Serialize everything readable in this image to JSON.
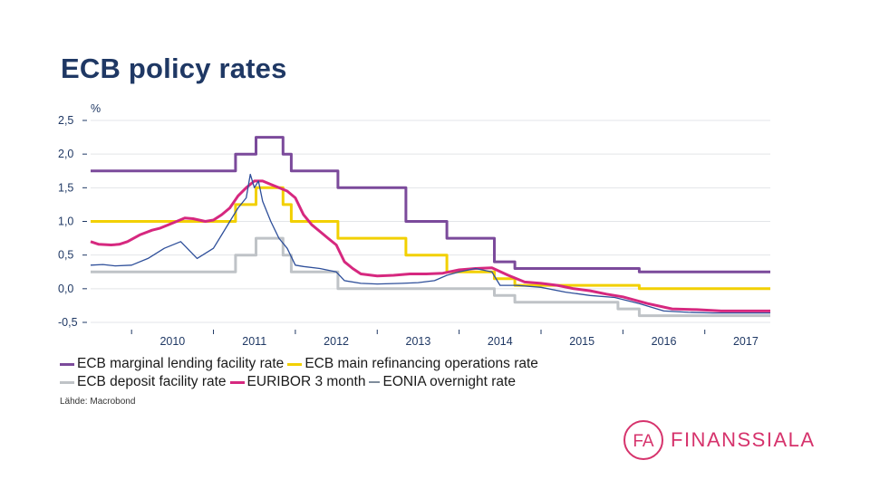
{
  "page": {
    "title": "ECB policy rates"
  },
  "source": "Lähde: Macrobond",
  "logo": {
    "monogram": "FA",
    "text": "FINANSSIALA",
    "color": "#d6336c"
  },
  "chart_data": {
    "type": "line",
    "title": "",
    "ylabel": "%",
    "xlabel": "",
    "y_ticks": [
      "2,5",
      "2,0",
      "1,5",
      "1,0",
      "0,5",
      "0,0",
      "-0,5"
    ],
    "y_tick_values": [
      2.5,
      2.0,
      1.5,
      1.0,
      0.5,
      0.0,
      -0.5
    ],
    "x_ticks": [
      "2010",
      "2011",
      "2012",
      "2013",
      "2014",
      "2015",
      "2016",
      "2017"
    ],
    "ylim": [
      -0.5,
      2.5
    ],
    "xlim": [
      2009.5,
      2017.8
    ],
    "grid": true,
    "legend_position": "bottom",
    "series": [
      {
        "name": "ECB marginal lending facility rate",
        "color": "#7b4a9b",
        "step": true,
        "x": [
          2009.5,
          2011.27,
          2011.52,
          2011.85,
          2011.95,
          2012.52,
          2013.35,
          2013.85,
          2014.43,
          2014.68,
          2015.94,
          2016.2,
          2017.8
        ],
        "y": [
          1.75,
          2.0,
          2.25,
          2.0,
          1.75,
          1.5,
          1.0,
          0.75,
          0.4,
          0.3,
          0.3,
          0.25,
          0.25
        ]
      },
      {
        "name": "ECB main refinancing operations rate",
        "color": "#f2d000",
        "step": true,
        "x": [
          2009.5,
          2011.27,
          2011.52,
          2011.85,
          2011.95,
          2012.52,
          2013.35,
          2013.85,
          2014.43,
          2014.68,
          2016.2,
          2017.8
        ],
        "y": [
          1.0,
          1.25,
          1.5,
          1.25,
          1.0,
          0.75,
          0.5,
          0.25,
          0.15,
          0.05,
          0.0,
          0.0
        ]
      },
      {
        "name": "ECB deposit facility rate",
        "color": "#bfc3c7",
        "step": true,
        "x": [
          2009.5,
          2011.27,
          2011.52,
          2011.85,
          2011.95,
          2012.52,
          2014.43,
          2014.68,
          2015.94,
          2016.2,
          2017.8
        ],
        "y": [
          0.25,
          0.5,
          0.75,
          0.5,
          0.25,
          0.0,
          -0.1,
          -0.2,
          -0.3,
          -0.4,
          -0.4
        ]
      },
      {
        "name": "EURIBOR 3 month",
        "color": "#d6287f",
        "step": false,
        "x": [
          2009.5,
          2009.6,
          2009.75,
          2009.85,
          2009.95,
          2010.1,
          2010.25,
          2010.35,
          2010.45,
          2010.55,
          2010.65,
          2010.75,
          2010.9,
          2011.0,
          2011.1,
          2011.2,
          2011.3,
          2011.4,
          2011.5,
          2011.6,
          2011.7,
          2011.8,
          2011.9,
          2012.0,
          2012.1,
          2012.2,
          2012.3,
          2012.4,
          2012.5,
          2012.6,
          2012.7,
          2012.8,
          2013.0,
          2013.2,
          2013.4,
          2013.6,
          2013.8,
          2014.0,
          2014.2,
          2014.4,
          2014.6,
          2014.8,
          2015.0,
          2015.2,
          2015.4,
          2015.6,
          2015.8,
          2016.0,
          2016.3,
          2016.6,
          2016.9,
          2017.2,
          2017.5,
          2017.8
        ],
        "y": [
          0.7,
          0.66,
          0.65,
          0.66,
          0.7,
          0.8,
          0.87,
          0.9,
          0.95,
          1.0,
          1.05,
          1.04,
          1.0,
          1.02,
          1.1,
          1.2,
          1.38,
          1.5,
          1.6,
          1.6,
          1.55,
          1.5,
          1.45,
          1.35,
          1.1,
          0.95,
          0.85,
          0.75,
          0.65,
          0.4,
          0.3,
          0.22,
          0.19,
          0.2,
          0.22,
          0.22,
          0.23,
          0.28,
          0.3,
          0.31,
          0.2,
          0.1,
          0.08,
          0.05,
          0.0,
          -0.03,
          -0.08,
          -0.12,
          -0.22,
          -0.3,
          -0.31,
          -0.33,
          -0.33,
          -0.33
        ]
      },
      {
        "name": "EONIA overnight rate",
        "color": "#2e4f9a",
        "step": false,
        "x": [
          2009.5,
          2009.65,
          2009.8,
          2010.0,
          2010.2,
          2010.4,
          2010.6,
          2010.8,
          2011.0,
          2011.1,
          2011.2,
          2011.3,
          2011.4,
          2011.45,
          2011.5,
          2011.55,
          2011.6,
          2011.7,
          2011.8,
          2011.9,
          2012.0,
          2012.1,
          2012.3,
          2012.5,
          2012.6,
          2012.8,
          2013.0,
          2013.3,
          2013.5,
          2013.7,
          2013.85,
          2014.0,
          2014.2,
          2014.4,
          2014.5,
          2014.7,
          2015.0,
          2015.3,
          2015.6,
          2015.9,
          2016.2,
          2016.5,
          2016.8,
          2017.1,
          2017.4,
          2017.8
        ],
        "y": [
          0.35,
          0.36,
          0.34,
          0.35,
          0.45,
          0.6,
          0.7,
          0.45,
          0.6,
          0.8,
          1.0,
          1.2,
          1.35,
          1.7,
          1.5,
          1.6,
          1.3,
          1.0,
          0.75,
          0.6,
          0.35,
          0.33,
          0.3,
          0.25,
          0.12,
          0.08,
          0.07,
          0.08,
          0.09,
          0.12,
          0.2,
          0.25,
          0.3,
          0.25,
          0.05,
          0.05,
          0.02,
          -0.05,
          -0.1,
          -0.13,
          -0.22,
          -0.33,
          -0.35,
          -0.36,
          -0.36,
          -0.36
        ]
      }
    ],
    "legend": [
      {
        "label": "ECB marginal lending facility rate",
        "color": "#7b4a9b"
      },
      {
        "label": "ECB main refinancing operations rate",
        "color": "#f2d000"
      },
      {
        "label": "ECB deposit facility rate",
        "color": "#bfc3c7"
      },
      {
        "label": "EURIBOR 3 month",
        "color": "#d6287f"
      },
      {
        "label": "EONIA overnight rate",
        "color": "#7f8c9b",
        "thin": true
      }
    ]
  }
}
